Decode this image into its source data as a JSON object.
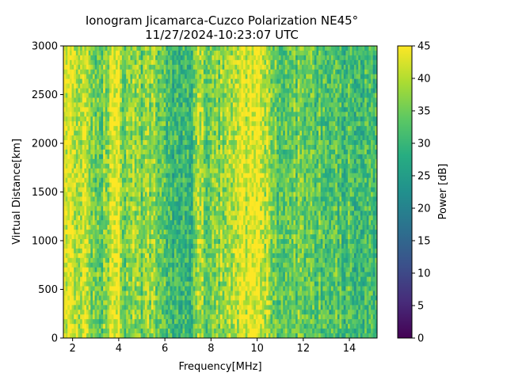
{
  "chart_data": {
    "type": "heatmap",
    "title": "Ionogram Jicamarca-Cuzco Polarization NE45°",
    "subtitle": "11/27/2024-10:23:07 UTC",
    "xlabel": "Frequency[MHz]",
    "ylabel": "Virtual Distance[km]",
    "xlim": [
      1.6,
      15.2
    ],
    "ylim": [
      0,
      3000
    ],
    "x_ticks": [
      2,
      4,
      6,
      8,
      10,
      12,
      14
    ],
    "y_ticks": [
      0,
      500,
      1000,
      1500,
      2000,
      2500,
      3000
    ],
    "colorbar": {
      "label": "Power [dB]",
      "range": [
        0,
        45
      ],
      "ticks": [
        0,
        5,
        10,
        15,
        20,
        25,
        30,
        35,
        40,
        45
      ],
      "colormap": "viridis"
    },
    "colormap_stops": [
      "#440154",
      "#472c7a",
      "#3b518b",
      "#2c718e",
      "#21908d",
      "#27ad81",
      "#5cc863",
      "#aadc32",
      "#fde725"
    ],
    "power_profile_by_frequency": {
      "frequency_mhz": [
        1.6,
        2.0,
        2.5,
        2.8,
        3.0,
        3.3,
        3.6,
        3.9,
        4.0,
        4.2,
        4.5,
        5.0,
        5.5,
        5.9,
        6.2,
        6.6,
        7.0,
        7.3,
        7.5,
        7.8,
        8.2,
        8.6,
        9.0,
        9.4,
        9.8,
        10.2,
        10.6,
        11.0,
        11.5,
        12.0,
        12.5,
        13.0,
        13.5,
        14.0,
        14.5,
        15.2
      ],
      "mean_power_db": [
        44,
        43,
        41,
        38,
        34,
        35,
        40,
        45,
        45,
        35,
        38,
        35,
        38,
        32,
        31,
        29,
        30,
        33,
        41,
        34,
        36,
        38,
        41,
        43,
        44,
        44,
        36,
        33,
        35,
        34,
        33,
        32,
        33,
        31,
        32,
        30
      ]
    }
  }
}
